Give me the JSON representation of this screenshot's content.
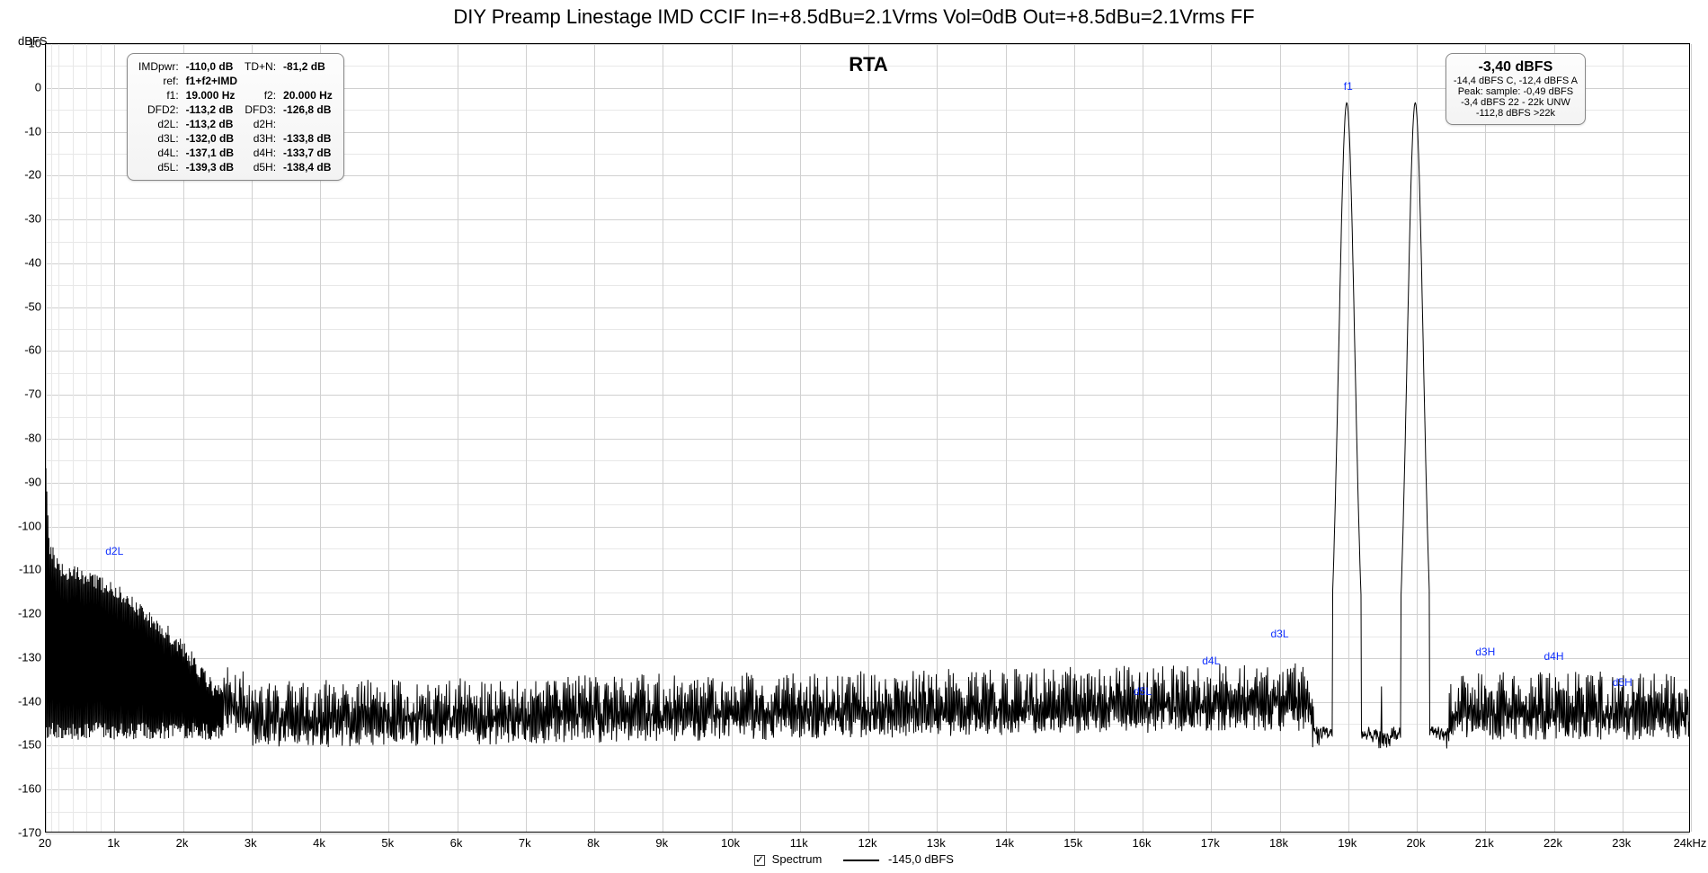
{
  "title": "DIY Preamp Linestage IMD CCIF In=+8.5dBu=2.1Vrms Vol=0dB Out=+8.5dBu=2.1Vrms FF",
  "rta_label": "RTA",
  "axis": {
    "y_unit": "dBFS",
    "y_min": -170,
    "y_max": 10,
    "y_step_major": 10,
    "x_min": 20,
    "x_max": 24000,
    "x_ticks": [
      {
        "v": 20,
        "label": "20"
      },
      {
        "v": 1000,
        "label": "1k"
      },
      {
        "v": 2000,
        "label": "2k"
      },
      {
        "v": 3000,
        "label": "3k"
      },
      {
        "v": 4000,
        "label": "4k"
      },
      {
        "v": 5000,
        "label": "5k"
      },
      {
        "v": 6000,
        "label": "6k"
      },
      {
        "v": 7000,
        "label": "7k"
      },
      {
        "v": 8000,
        "label": "8k"
      },
      {
        "v": 9000,
        "label": "9k"
      },
      {
        "v": 10000,
        "label": "10k"
      },
      {
        "v": 11000,
        "label": "11k"
      },
      {
        "v": 12000,
        "label": "12k"
      },
      {
        "v": 13000,
        "label": "13k"
      },
      {
        "v": 14000,
        "label": "14k"
      },
      {
        "v": 15000,
        "label": "15k"
      },
      {
        "v": 16000,
        "label": "16k"
      },
      {
        "v": 17000,
        "label": "17k"
      },
      {
        "v": 18000,
        "label": "18k"
      },
      {
        "v": 19000,
        "label": "19k"
      },
      {
        "v": 20000,
        "label": "20k"
      },
      {
        "v": 21000,
        "label": "21k"
      },
      {
        "v": 22000,
        "label": "22k"
      },
      {
        "v": 23000,
        "label": "23k"
      },
      {
        "v": 24000,
        "label": "24kHz"
      }
    ]
  },
  "spectrum": {
    "color": "#000000",
    "line_width": 1,
    "noise_floor": -145,
    "noise_jitter_up": 6,
    "noise_jitter_down": 5,
    "low_freq_rise": [
      {
        "f": 20,
        "db": -86
      },
      {
        "f": 60,
        "db": -104
      },
      {
        "f": 200,
        "db": -110
      },
      {
        "f": 700,
        "db": -112
      },
      {
        "f": 1000,
        "db": -115
      },
      {
        "f": 1400,
        "db": -120
      },
      {
        "f": 1800,
        "db": -125
      },
      {
        "f": 2200,
        "db": -132
      },
      {
        "f": 2600,
        "db": -140
      },
      {
        "f": 3200,
        "db": -145
      }
    ],
    "tones": [
      {
        "f": 19000,
        "peak_db": -3.4,
        "skirt_width_hz": 350
      },
      {
        "f": 20000,
        "peak_db": -3.4,
        "skirt_width_hz": 350
      }
    ],
    "low_freq_spikes_density": 80,
    "mid_spikes_density": 420
  },
  "left_box": {
    "rows": [
      [
        "IMDpwr:",
        "-110,0 dB",
        "TD+N:",
        "-81,2 dB"
      ],
      [
        "ref:",
        "f1+f2+IMD",
        "",
        ""
      ],
      [
        "f1:",
        "19.000 Hz",
        "f2:",
        "20.000 Hz"
      ],
      [
        "DFD2:",
        "-113,2 dB",
        "DFD3:",
        "-126,8 dB"
      ],
      [
        "d2L:",
        "-113,2 dB",
        "d2H:",
        ""
      ],
      [
        "d3L:",
        "-132,0 dB",
        "d3H:",
        "-133,8 dB"
      ],
      [
        "d4L:",
        "-137,1 dB",
        "d4H:",
        "-133,7 dB"
      ],
      [
        "d5L:",
        "-139,3 dB",
        "d5H:",
        "-138,4 dB"
      ]
    ]
  },
  "right_box": {
    "main": "-3,40 dBFS",
    "lines": [
      "-14,4 dBFS C, -12,4 dBFS A",
      "Peak: sample: -0,49 dBFS",
      "-3,4 dBFS 22 - 22k UNW",
      "-112,8 dBFS >22k"
    ]
  },
  "markers": [
    {
      "label": "d2L",
      "f": 1000,
      "db": -107
    },
    {
      "label": "f1",
      "f": 19000,
      "db": -1
    },
    {
      "label": "d3L",
      "f": 18000,
      "db": -126
    },
    {
      "label": "d4L",
      "f": 17000,
      "db": -132
    },
    {
      "label": "d5L",
      "f": 16000,
      "db": -139
    },
    {
      "label": "d3H",
      "f": 21000,
      "db": -130
    },
    {
      "label": "d4H",
      "f": 22000,
      "db": -131
    },
    {
      "label": "d5H",
      "f": 23000,
      "db": -137
    }
  ],
  "legend": {
    "spectrum_label": "Spectrum",
    "trace_label": "-145,0 dBFS"
  },
  "colors": {
    "marker": "#1030ff",
    "grid_minor": "#e8e8e8",
    "grid_major": "#d0d0d0",
    "background": "#ffffff"
  }
}
